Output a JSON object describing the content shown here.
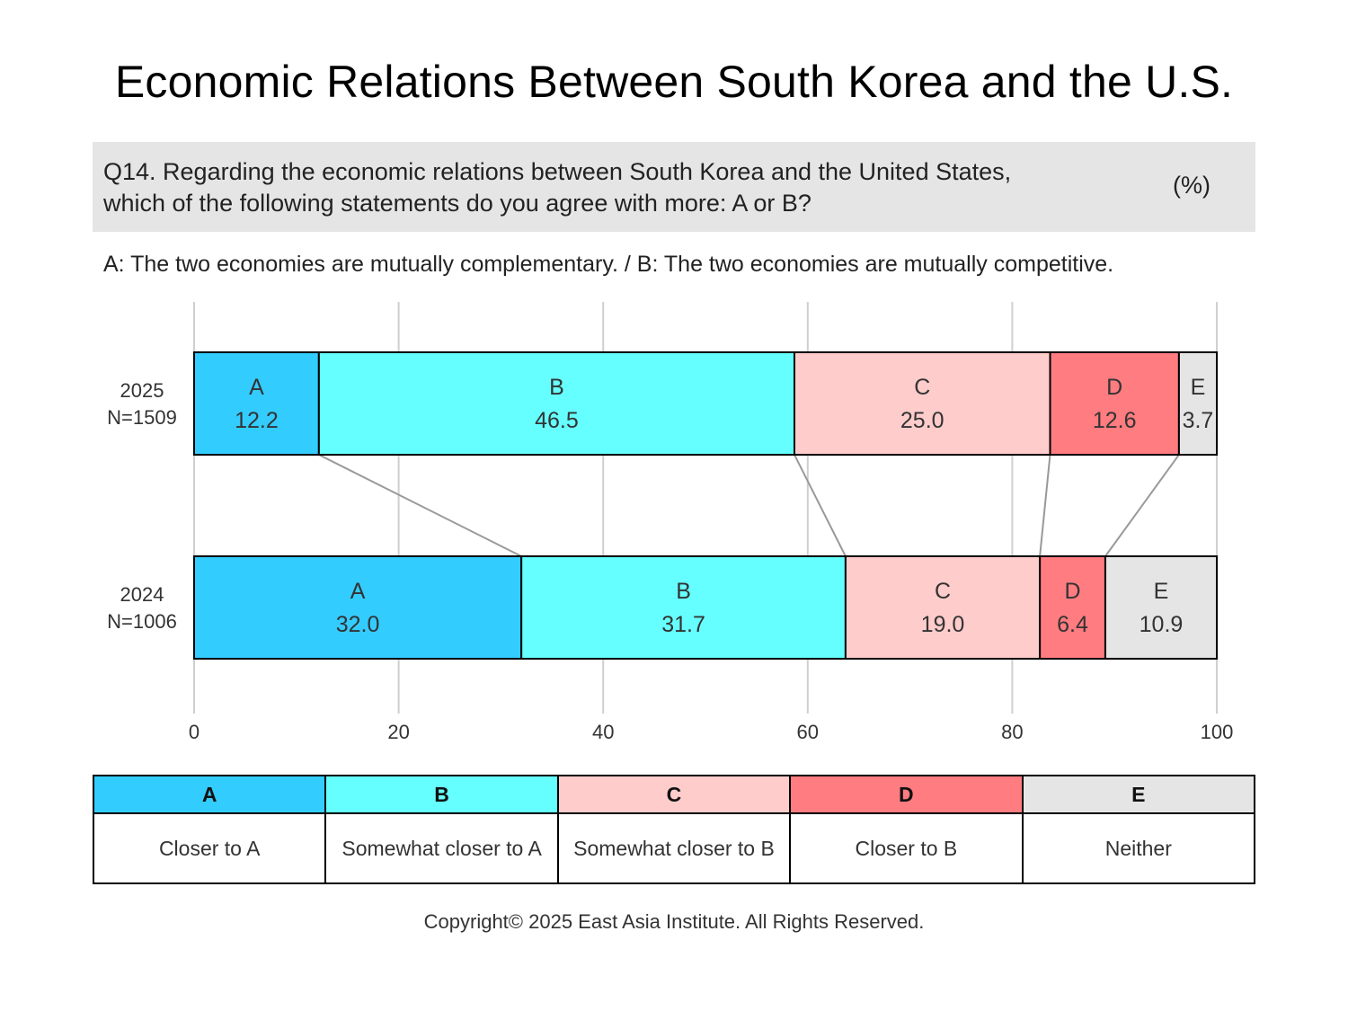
{
  "title": "Economic Relations Between South Korea and the U.S.",
  "question": {
    "line1": "Q14. Regarding the economic relations between South Korea and the United States,",
    "line2": "which of the following statements do you agree with more: A or B?",
    "unit": "(%)"
  },
  "definition": "A: The two economies are mutually complementary. / B: The two economies are mutually competitive.",
  "colors": {
    "A": "#33ccff",
    "B": "#66ffff",
    "C": "#ffcccc",
    "D": "#ff7c80",
    "E": "#e6e5e6"
  },
  "chart_data": {
    "type": "bar",
    "orientation": "horizontal",
    "stacked": true,
    "categories": [
      "2025",
      "2024"
    ],
    "category_labels": [
      {
        "year": "2025",
        "n": "N=1509"
      },
      {
        "year": "2024",
        "n": "N=1006"
      }
    ],
    "series": [
      {
        "name": "A",
        "values": [
          12.2,
          32.0
        ]
      },
      {
        "name": "B",
        "values": [
          46.5,
          31.7
        ]
      },
      {
        "name": "C",
        "values": [
          25.0,
          19.0
        ]
      },
      {
        "name": "D",
        "values": [
          12.6,
          6.4
        ]
      },
      {
        "name": "E",
        "values": [
          3.7,
          10.9
        ]
      }
    ],
    "xlim": [
      0,
      100
    ],
    "xticks": [
      0,
      20,
      40,
      60,
      80,
      100
    ],
    "grid": true,
    "connector_lines": true
  },
  "legend": {
    "headers": [
      "A",
      "B",
      "C",
      "D",
      "E"
    ],
    "descriptions": [
      "Closer to A",
      "Somewhat closer to A",
      "Somewhat closer to B",
      "Closer to B",
      "Neither"
    ]
  },
  "copyright": "Copyright© 2025 East Asia Institute. All Rights Reserved."
}
